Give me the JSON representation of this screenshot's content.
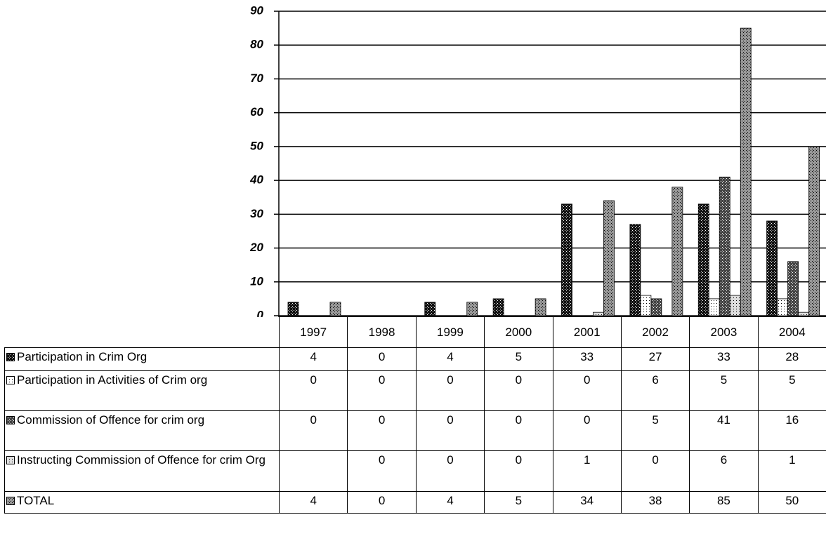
{
  "chart_data": {
    "type": "bar",
    "categories": [
      "1997",
      "1998",
      "1999",
      "2000",
      "2001",
      "2002",
      "2003",
      "2004"
    ],
    "series": [
      {
        "name": "Participation in Crim Org",
        "color": "#111111",
        "values": [
          4,
          0,
          4,
          5,
          33,
          27,
          33,
          28
        ]
      },
      {
        "name": "Participation in Activities of Crim org",
        "color": "#ffffff",
        "values": [
          0,
          0,
          0,
          0,
          0,
          6,
          5,
          5
        ]
      },
      {
        "name": "Commission of Offence for crim org",
        "color": "#444444",
        "values": [
          0,
          0,
          0,
          0,
          0,
          5,
          41,
          16
        ]
      },
      {
        "name": "Instructing Commission of Offence for crim Org",
        "color": "#dddddd",
        "values": [
          null,
          0,
          0,
          0,
          1,
          0,
          6,
          1
        ]
      },
      {
        "name": "TOTAL",
        "color": "#999999",
        "values": [
          4,
          0,
          4,
          5,
          34,
          38,
          85,
          50
        ]
      }
    ],
    "ylim": [
      0,
      90
    ],
    "yticks": [
      0,
      10,
      20,
      30,
      40,
      50,
      60,
      70,
      80,
      90
    ],
    "grid": true
  }
}
